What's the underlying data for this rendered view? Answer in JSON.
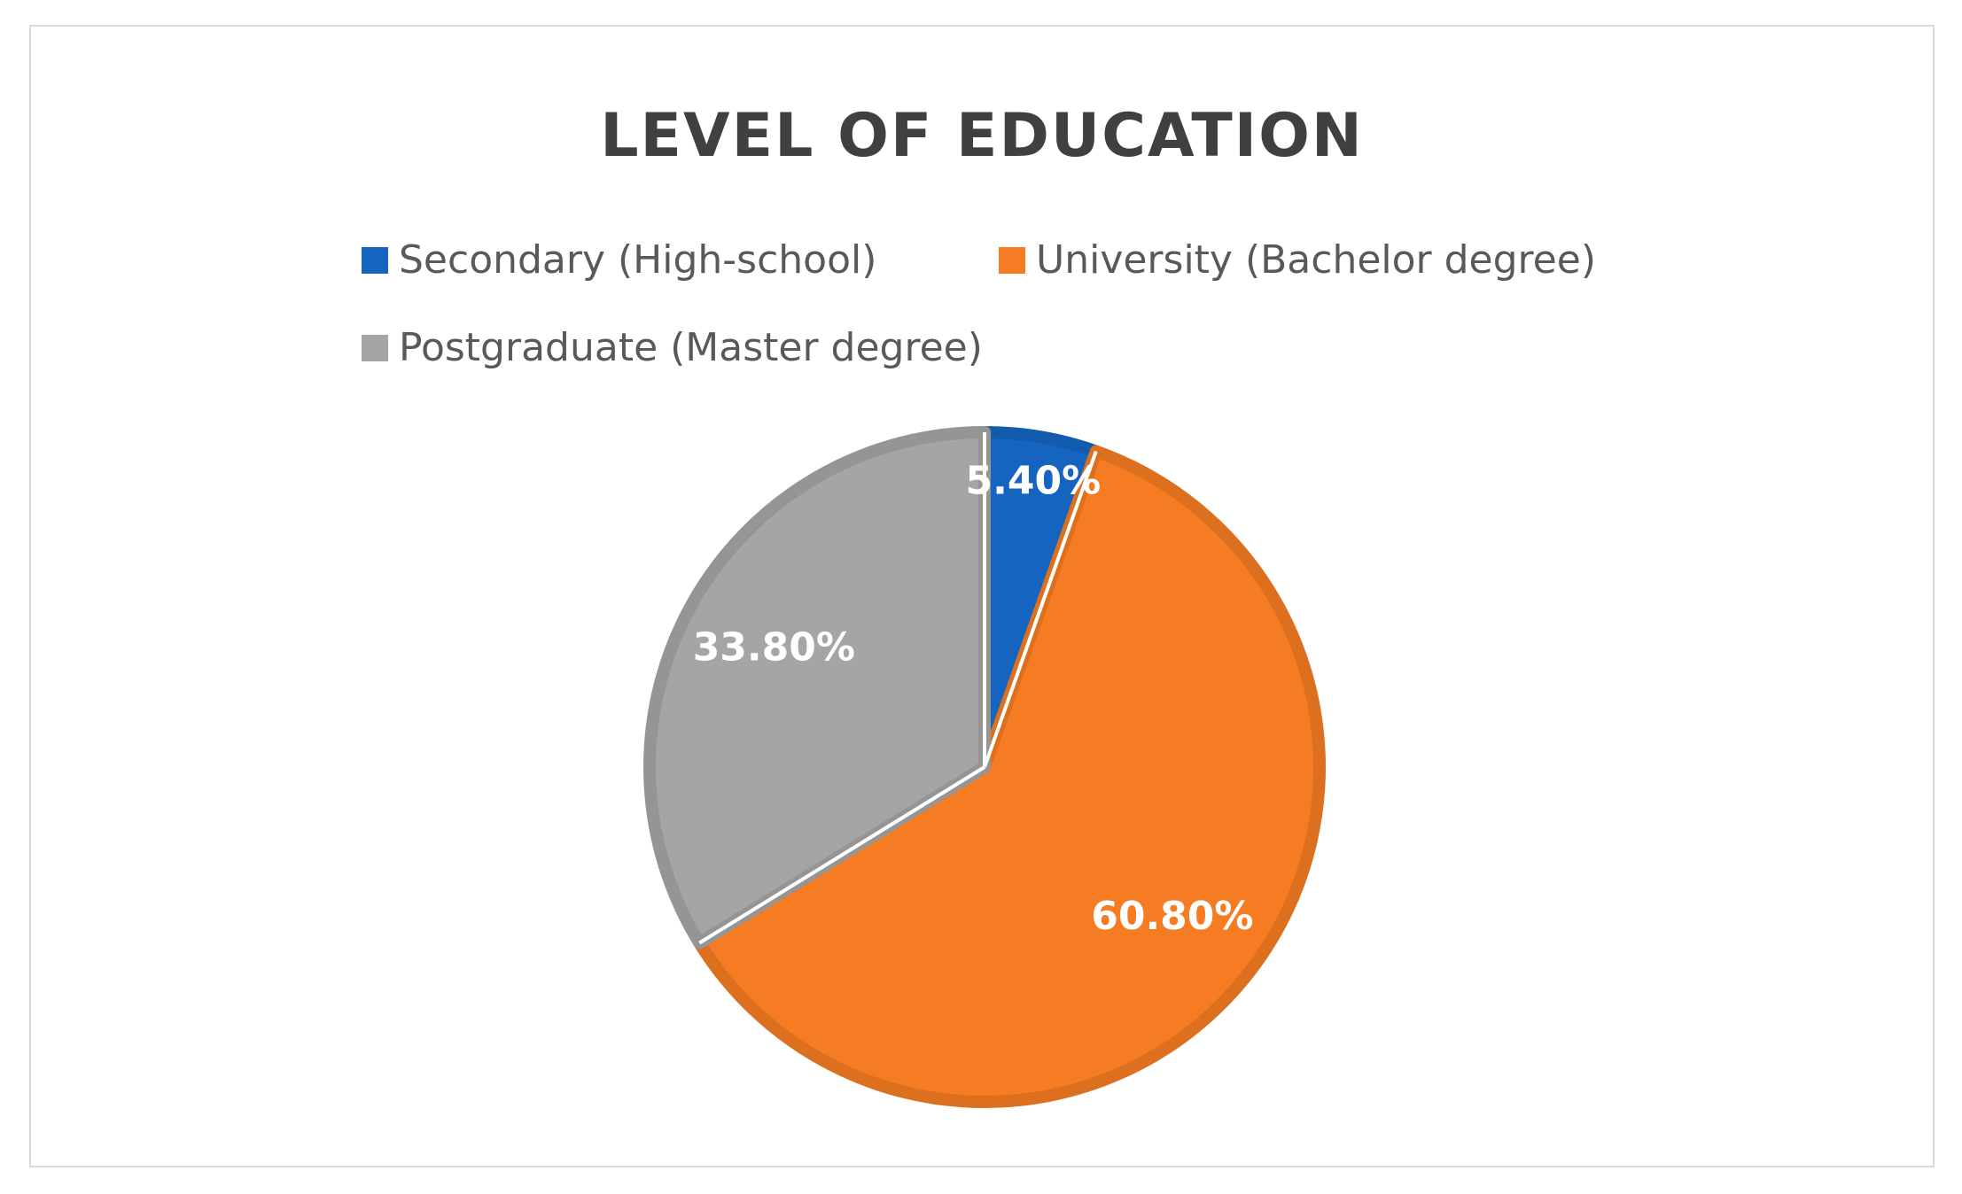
{
  "chart_data": {
    "type": "pie",
    "title": "LEVEL OF EDUCATION",
    "categories": [
      "Secondary (High-school)",
      "University (Bachelor degree)",
      "Postgraduate (Master degree)"
    ],
    "values": [
      5.4,
      60.8,
      33.8
    ],
    "data_labels": [
      "5.40%",
      "60.80%",
      "33.80%"
    ],
    "colors": [
      "#1565c0",
      "#f57c22",
      "#a5a5a5"
    ],
    "legend_position": "top",
    "start_angle": "12 o'clock",
    "direction": "clockwise"
  }
}
